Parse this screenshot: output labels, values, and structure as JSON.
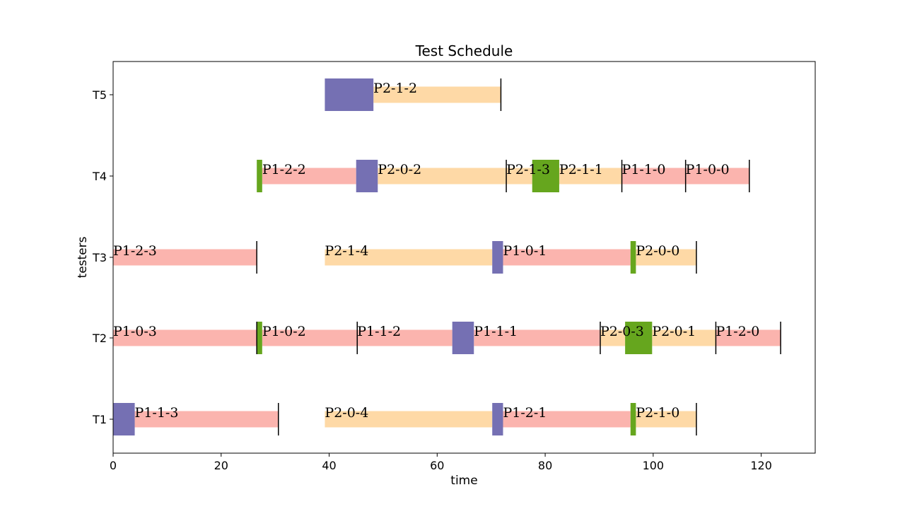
{
  "chart_data": {
    "type": "gantt",
    "title": "Test Schedule",
    "xlabel": "time",
    "ylabel": "testers",
    "xlim": [
      0,
      130
    ],
    "x_ticks": [
      0,
      20,
      40,
      60,
      80,
      100,
      120
    ],
    "rows": [
      "T1",
      "T2",
      "T3",
      "T4",
      "T5"
    ],
    "colors": {
      "P1": "#fbb4ae",
      "P2": "#fed9a6",
      "setup_purple": "#7570b3",
      "setup_green": "#66a61e",
      "end_marker": "#000000"
    },
    "setups": [
      {
        "row": "T1",
        "start": 0,
        "end": 4,
        "color": "setup_purple"
      },
      {
        "row": "T1",
        "start": 70.2,
        "end": 72.2,
        "color": "setup_purple"
      },
      {
        "row": "T1",
        "start": 95.8,
        "end": 96.8,
        "color": "setup_green"
      },
      {
        "row": "T2",
        "start": 26.6,
        "end": 27.6,
        "color": "setup_green"
      },
      {
        "row": "T2",
        "start": 62.8,
        "end": 66.8,
        "color": "setup_purple"
      },
      {
        "row": "T2",
        "start": 94.8,
        "end": 99.8,
        "color": "setup_green"
      },
      {
        "row": "T3",
        "start": 70.2,
        "end": 72.2,
        "color": "setup_purple"
      },
      {
        "row": "T3",
        "start": 95.8,
        "end": 96.8,
        "color": "setup_green"
      },
      {
        "row": "T4",
        "start": 26.6,
        "end": 27.6,
        "color": "setup_green"
      },
      {
        "row": "T4",
        "start": 45.0,
        "end": 49.0,
        "color": "setup_purple"
      },
      {
        "row": "T4",
        "start": 77.6,
        "end": 82.6,
        "color": "setup_green"
      },
      {
        "row": "T5",
        "start": 39.2,
        "end": 48.2,
        "color": "setup_purple"
      }
    ],
    "tasks": [
      {
        "row": "T1",
        "label": "P1-1-3",
        "start": 4.0,
        "end": 30.6,
        "color": "P1"
      },
      {
        "row": "T1",
        "label": "P2-0-4",
        "start": 39.2,
        "end": 70.2,
        "color": "P2"
      },
      {
        "row": "T1",
        "label": "P1-2-1",
        "start": 72.2,
        "end": 95.8,
        "color": "P1"
      },
      {
        "row": "T1",
        "label": "P2-1-0",
        "start": 96.8,
        "end": 108.0,
        "color": "P2"
      },
      {
        "row": "T2",
        "label": "P1-0-3",
        "start": 0.0,
        "end": 26.6,
        "color": "P1"
      },
      {
        "row": "T2",
        "label": "P1-0-2",
        "start": 27.6,
        "end": 45.2,
        "color": "P1"
      },
      {
        "row": "T2",
        "label": "P1-1-2",
        "start": 45.2,
        "end": 62.8,
        "color": "P1"
      },
      {
        "row": "T2",
        "label": "P1-1-1",
        "start": 66.8,
        "end": 90.2,
        "color": "P1"
      },
      {
        "row": "T2",
        "label": "P2-0-3",
        "start": 90.2,
        "end": 94.8,
        "color": "P2"
      },
      {
        "row": "T2",
        "label": "P2-0-1",
        "start": 99.8,
        "end": 111.6,
        "color": "P2"
      },
      {
        "row": "T2",
        "label": "P1-2-0",
        "start": 111.6,
        "end": 123.6,
        "color": "P1"
      },
      {
        "row": "T3",
        "label": "P1-2-3",
        "start": 0.0,
        "end": 26.6,
        "color": "P1"
      },
      {
        "row": "T3",
        "label": "P2-1-4",
        "start": 39.2,
        "end": 70.2,
        "color": "P2"
      },
      {
        "row": "T3",
        "label": "P1-0-1",
        "start": 72.2,
        "end": 95.8,
        "color": "P1"
      },
      {
        "row": "T3",
        "label": "P2-0-0",
        "start": 96.8,
        "end": 108.0,
        "color": "P2"
      },
      {
        "row": "T4",
        "label": "P1-2-2",
        "start": 27.6,
        "end": 45.0,
        "color": "P1"
      },
      {
        "row": "T4",
        "label": "P2-0-2",
        "start": 49.0,
        "end": 72.8,
        "color": "P2"
      },
      {
        "row": "T4",
        "label": "P2-1-3",
        "start": 72.8,
        "end": 77.6,
        "color": "P2"
      },
      {
        "row": "T4",
        "label": "P2-1-1",
        "start": 82.6,
        "end": 94.2,
        "color": "P2"
      },
      {
        "row": "T4",
        "label": "P1-1-0",
        "start": 94.2,
        "end": 106.0,
        "color": "P1"
      },
      {
        "row": "T4",
        "label": "P1-0-0",
        "start": 106.0,
        "end": 117.8,
        "color": "P1"
      },
      {
        "row": "T5",
        "label": "P2-1-2",
        "start": 48.2,
        "end": 71.8,
        "color": "P2"
      }
    ],
    "end_markers": [
      {
        "row": "T1",
        "x": 30.6
      },
      {
        "row": "T1",
        "x": 108.0
      },
      {
        "row": "T2",
        "x": 26.6
      },
      {
        "row": "T2",
        "x": 45.2
      },
      {
        "row": "T2",
        "x": 90.2
      },
      {
        "row": "T2",
        "x": 111.6
      },
      {
        "row": "T2",
        "x": 123.6
      },
      {
        "row": "T3",
        "x": 26.6
      },
      {
        "row": "T3",
        "x": 108.0
      },
      {
        "row": "T4",
        "x": 72.8
      },
      {
        "row": "T4",
        "x": 94.2
      },
      {
        "row": "T4",
        "x": 106.0
      },
      {
        "row": "T4",
        "x": 117.8
      },
      {
        "row": "T5",
        "x": 71.8
      }
    ]
  }
}
